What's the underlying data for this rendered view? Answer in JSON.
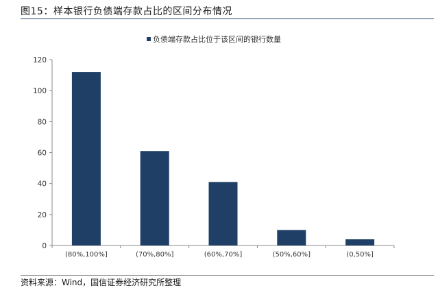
{
  "figure": {
    "title": "图15：样本银行负债端存款占比的区间分布情况",
    "source": "资料来源：Wind，国信证券经济研究所整理"
  },
  "chart_data": {
    "type": "bar",
    "categories": [
      "(80%,100%]",
      "(70%,80%]",
      "(60%,70%]",
      "(50%,60%]",
      "(0,50%]"
    ],
    "series": [
      {
        "name": "负债端存款占比位于该区间的银行数量",
        "values": [
          112,
          61,
          41,
          10,
          4
        ]
      }
    ],
    "title": "",
    "xlabel": "",
    "ylabel": "",
    "ylim": [
      0,
      120
    ],
    "yticks": [
      0,
      20,
      40,
      60,
      80,
      100,
      120
    ],
    "grid": false,
    "legend": "top-center",
    "colors": {
      "bar": "#1f3f66",
      "axis": "#888888",
      "text": "#333333"
    }
  }
}
